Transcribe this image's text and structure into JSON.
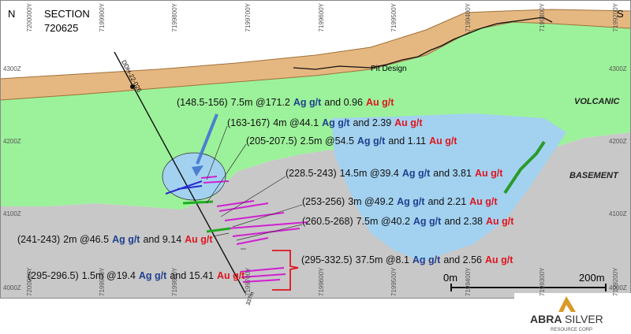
{
  "header": {
    "north": "N",
    "south": "S",
    "section_label": "SECTION",
    "section_number": "720625"
  },
  "northings": [
    "7200000Y",
    "7199900Y",
    "7199800Y",
    "7199700Y",
    "7199600Y",
    "7199500Y",
    "7199400Y",
    "7199300Y",
    "7199200Y"
  ],
  "elevations": [
    "4300Z",
    "4200Z",
    "4100Z",
    "4000Z"
  ],
  "drillhole": {
    "name": "DDH-22-026",
    "depth": "337m"
  },
  "pit_label": "Pit Design",
  "units": [
    "VOLCANIC",
    "BASEMENT"
  ],
  "intercepts": [
    {
      "interval": "(148.5-156)",
      "result": "7.5m @171.2",
      "ag": "Ag g/t",
      "and": "and 0.96",
      "au": "Au g/t"
    },
    {
      "interval": "(163-167)",
      "result": "4m @44.1",
      "ag": "Ag g/t",
      "and": "and 2.39",
      "au": "Au g/t"
    },
    {
      "interval": "(205-207.5)",
      "result": "2.5m @54.5",
      "ag": "Ag g/t",
      "and": "and 1.11",
      "au": "Au g/t"
    },
    {
      "interval": "(228.5-243)",
      "result": "14.5m @39.4",
      "ag": "Ag g/t",
      "and": "and 3.81",
      "au": "Au g/t"
    },
    {
      "interval": "(253-256)",
      "result": "3m @49.2",
      "ag": "Ag g/t",
      "and": "and 2.21",
      "au": "Au g/t"
    },
    {
      "interval": "(260.5-268)",
      "result": "7.5m @40.2",
      "ag": "Ag g/t",
      "and": "and 2.38",
      "au": "Au g/t"
    },
    {
      "interval": "(241-243)",
      "result": "2m @46.5",
      "ag": "Ag g/t",
      "and": "and 9.14",
      "au": "Au g/t"
    },
    {
      "interval": "(295-296.5)",
      "result": "1.5m @19.4",
      "ag": "Ag g/t",
      "and": "and 15.41",
      "au": "Au g/t"
    },
    {
      "interval": "(295-332.5)",
      "result": "37.5m @8.1",
      "ag": "Ag g/t",
      "and": "and 2.56",
      "au": "Au g/t"
    }
  ],
  "scale": {
    "start": "0m",
    "end": "200m"
  },
  "logo": {
    "name_a": "ABRA",
    "name_b": "SILVER",
    "tagline": "RESOURCE CORP"
  }
}
